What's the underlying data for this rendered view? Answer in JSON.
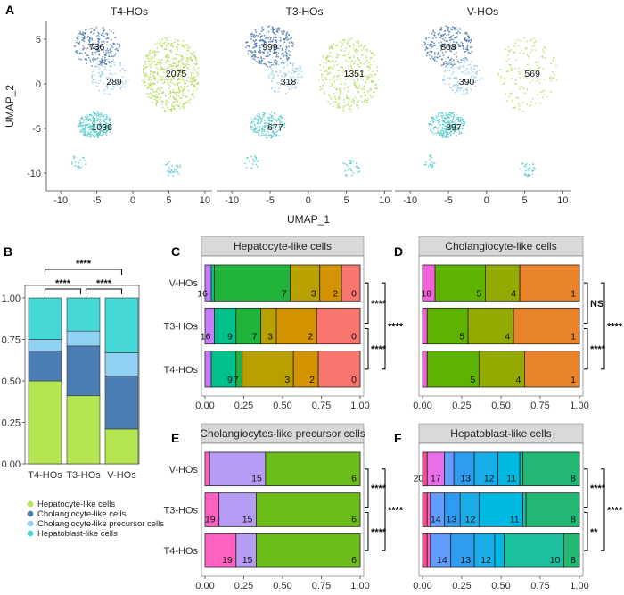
{
  "panel_letters": [
    "A",
    "B",
    "C",
    "D",
    "E",
    "F"
  ],
  "colors": {
    "hepatocyte": "#b5e550",
    "cholangiocyte": "#4a7eb5",
    "cholangiocyte_precursor": "#8ed1f2",
    "hepatoblast": "#45d8d6",
    "umap_hepatocyte": "#a9d84a",
    "umap_cholangiocyte": "#3f6fa6",
    "umap_precursor": "#8cc6e6",
    "umap_hepatoblast": "#45c7c6",
    "strip_bg": "#d9d9d9",
    "cluster": {
      "0": "#f8766d",
      "1": "#e9842c",
      "2": "#d39200",
      "3": "#b8a000",
      "4": "#93aa00",
      "5": "#5eb300",
      "6": "#6dbd1a",
      "7": "#21b43a",
      "8": "#22b873",
      "9": "#00c08b",
      "10": "#1cbf9e",
      "11": "#00b9e3",
      "12": "#1aaee8",
      "13": "#2f9cf0",
      "14": "#619cff",
      "15": "#b79cf5",
      "16": "#c77cff",
      "17": "#ea6ee9",
      "18": "#f062d6",
      "19": "#ff61c3",
      "20": "#f24f8a"
    }
  },
  "chart_data": [
    {
      "id": "A",
      "type": "scatter",
      "xlabel": "UMAP_1",
      "ylabel": "UMAP_2",
      "xlim": [
        -12,
        11
      ],
      "ylim": [
        -12,
        7
      ],
      "xticks": [
        "-10",
        "-5",
        "0",
        "5",
        "10"
      ],
      "yticks": [
        "5",
        "0",
        "-5",
        "-10"
      ],
      "facets": [
        {
          "title": "T4-HOs",
          "counts": {
            "cholangiocyte": "736",
            "precursor": "289",
            "hepatocyte": "2075",
            "hepatoblast": "1036"
          }
        },
        {
          "title": "T3-HOs",
          "counts": {
            "cholangiocyte": "999",
            "precursor": "318",
            "hepatocyte": "1351",
            "hepatoblast": "677"
          }
        },
        {
          "title": "V-HOs",
          "counts": {
            "cholangiocyte": "868",
            "precursor": "390",
            "hepatocyte": "569",
            "hepatoblast": "897"
          }
        }
      ]
    },
    {
      "id": "B",
      "type": "bar",
      "stacked": true,
      "categories": [
        "T4-HOs",
        "T3-HOs",
        "V-HOs"
      ],
      "series": [
        {
          "name": "Hepatocyte-like cells",
          "key": "hepatocyte",
          "values": [
            0.5,
            0.41,
            0.21
          ]
        },
        {
          "name": "Cholangiocyte-like cells",
          "key": "cholangiocyte",
          "values": [
            0.18,
            0.3,
            0.32
          ]
        },
        {
          "name": "Cholangiocyte-like precursor cells",
          "key": "cholangiocyte_precursor",
          "values": [
            0.07,
            0.09,
            0.14
          ]
        },
        {
          "name": "Hepatoblast-like cells",
          "key": "hepatoblast",
          "values": [
            0.25,
            0.2,
            0.33
          ]
        }
      ],
      "ylim": [
        0,
        1
      ],
      "yticks": [
        "0.00",
        "0.25",
        "0.50",
        "0.75",
        "1.00"
      ],
      "significance": [
        {
          "pair": [
            "T4-HOs",
            "T3-HOs"
          ],
          "label": "****"
        },
        {
          "pair": [
            "T3-HOs",
            "V-HOs"
          ],
          "label": "****"
        },
        {
          "pair": [
            "T4-HOs",
            "V-HOs"
          ],
          "label": "****"
        }
      ]
    },
    {
      "id": "C",
      "type": "bar",
      "orientation": "horizontal",
      "stacked": true,
      "title": "Hepatocyte-like cells",
      "categories": [
        "V-HOs",
        "T3-HOs",
        "T4-HOs"
      ],
      "xticks": [
        "0.00",
        "0.25",
        "0.50",
        "0.75",
        "1.00"
      ],
      "rows": [
        {
          "segments": [
            {
              "c": "16",
              "v": 0.04,
              "label": "16"
            },
            {
              "c": "9",
              "v": 0.02
            },
            {
              "c": "7",
              "v": 0.49,
              "label": "7"
            },
            {
              "c": "3",
              "v": 0.19,
              "label": "3"
            },
            {
              "c": "2",
              "v": 0.14,
              "label": "2"
            },
            {
              "c": "0",
              "v": 0.12,
              "label": "0"
            }
          ]
        },
        {
          "segments": [
            {
              "c": "16",
              "v": 0.06,
              "label": "16"
            },
            {
              "c": "9",
              "v": 0.14,
              "label": "9"
            },
            {
              "c": "7",
              "v": 0.16,
              "label": "7"
            },
            {
              "c": "3",
              "v": 0.1,
              "label": "3"
            },
            {
              "c": "2",
              "v": 0.26,
              "label": "2"
            },
            {
              "c": "0",
              "v": 0.28,
              "label": "0"
            }
          ]
        },
        {
          "segments": [
            {
              "c": "16",
              "v": 0.04
            },
            {
              "c": "9",
              "v": 0.16,
              "label": "9"
            },
            {
              "c": "7",
              "v": 0.04,
              "label": "7"
            },
            {
              "c": "3",
              "v": 0.33,
              "label": "3"
            },
            {
              "c": "2",
              "v": 0.16,
              "label": "2"
            },
            {
              "c": "0",
              "v": 0.27,
              "label": "0"
            }
          ]
        }
      ],
      "significance": {
        "adjacent": [
          "****",
          "****"
        ],
        "outer": "****"
      }
    },
    {
      "id": "D",
      "type": "bar",
      "orientation": "horizontal",
      "stacked": true,
      "title": "Cholangiocyte-like cells",
      "categories": [
        "V-HOs",
        "T3-HOs",
        "T4-HOs"
      ],
      "xticks": [
        "0.00",
        "0.25",
        "0.50",
        "0.75",
        "1.00"
      ],
      "rows": [
        {
          "segments": [
            {
              "c": "18",
              "v": 0.08,
              "label": "18"
            },
            {
              "c": "5",
              "v": 0.32,
              "label": "5"
            },
            {
              "c": "4",
              "v": 0.22,
              "label": "4"
            },
            {
              "c": "1",
              "v": 0.38,
              "label": "1"
            }
          ]
        },
        {
          "segments": [
            {
              "c": "18",
              "v": 0.03
            },
            {
              "c": "5",
              "v": 0.26,
              "label": "5"
            },
            {
              "c": "4",
              "v": 0.29,
              "label": "4"
            },
            {
              "c": "1",
              "v": 0.42,
              "label": "1"
            }
          ]
        },
        {
          "segments": [
            {
              "c": "18",
              "v": 0.03
            },
            {
              "c": "5",
              "v": 0.33,
              "label": "5"
            },
            {
              "c": "4",
              "v": 0.29,
              "label": "4"
            },
            {
              "c": "1",
              "v": 0.35,
              "label": "1"
            }
          ]
        }
      ],
      "significance": {
        "adjacent": [
          "NS",
          "****"
        ],
        "outer": "****"
      }
    },
    {
      "id": "E",
      "type": "bar",
      "orientation": "horizontal",
      "stacked": true,
      "title": "Cholangiocytes-like precursor cells",
      "categories": [
        "V-HOs",
        "T3-HOs",
        "T4-HOs"
      ],
      "xticks": [
        "0.00",
        "0.25",
        "0.50",
        "0.75",
        "1.00"
      ],
      "rows": [
        {
          "segments": [
            {
              "c": "19",
              "v": 0.03
            },
            {
              "c": "15",
              "v": 0.36,
              "label": "15"
            },
            {
              "c": "6",
              "v": 0.61,
              "label": "6"
            }
          ]
        },
        {
          "segments": [
            {
              "c": "19",
              "v": 0.09,
              "label": "19"
            },
            {
              "c": "15",
              "v": 0.24,
              "label": "15"
            },
            {
              "c": "6",
              "v": 0.67,
              "label": "6"
            }
          ]
        },
        {
          "segments": [
            {
              "c": "19",
              "v": 0.2,
              "label": "19"
            },
            {
              "c": "15",
              "v": 0.13,
              "label": "15"
            },
            {
              "c": "6",
              "v": 0.67,
              "label": "6"
            }
          ]
        }
      ],
      "significance": {
        "adjacent": [
          "****",
          "****"
        ],
        "outer": "****"
      }
    },
    {
      "id": "F",
      "type": "bar",
      "orientation": "horizontal",
      "stacked": true,
      "title": "Hepatoblast-like cells",
      "categories": [
        "V-HOs",
        "T3-HOs",
        "T4-HOs"
      ],
      "xticks": [
        "0.00",
        "0.25",
        "0.50",
        "0.75",
        "1.00"
      ],
      "rows": [
        {
          "segments": [
            {
              "c": "20",
              "v": 0.03,
              "label": "20"
            },
            {
              "c": "17",
              "v": 0.11,
              "label": "17"
            },
            {
              "c": "14",
              "v": 0.06
            },
            {
              "c": "13",
              "v": 0.13,
              "label": "13"
            },
            {
              "c": "12",
              "v": 0.15,
              "label": "12"
            },
            {
              "c": "11",
              "v": 0.14,
              "label": "11"
            },
            {
              "c": "10",
              "v": 0.02
            },
            {
              "c": "8",
              "v": 0.36,
              "label": "8"
            }
          ]
        },
        {
          "segments": [
            {
              "c": "20",
              "v": 0.03
            },
            {
              "c": "19",
              "v": 0.02
            },
            {
              "c": "14",
              "v": 0.09,
              "label": "14"
            },
            {
              "c": "13",
              "v": 0.1,
              "label": "13"
            },
            {
              "c": "12",
              "v": 0.12,
              "label": "12"
            },
            {
              "c": "11",
              "v": 0.28,
              "label": "11"
            },
            {
              "c": "10",
              "v": 0.02
            },
            {
              "c": "8",
              "v": 0.34,
              "label": "8"
            }
          ]
        },
        {
          "segments": [
            {
              "c": "20",
              "v": 0.03
            },
            {
              "c": "19",
              "v": 0.02
            },
            {
              "c": "14",
              "v": 0.13,
              "label": "14"
            },
            {
              "c": "13",
              "v": 0.15,
              "label": "13"
            },
            {
              "c": "12",
              "v": 0.13,
              "label": "12"
            },
            {
              "c": "11",
              "v": 0.06
            },
            {
              "c": "10",
              "v": 0.38,
              "label": "10"
            },
            {
              "c": "8",
              "v": 0.1,
              "label": "8"
            }
          ]
        }
      ],
      "significance": {
        "adjacent": [
          "****",
          "**"
        ],
        "outer": "****"
      }
    }
  ]
}
